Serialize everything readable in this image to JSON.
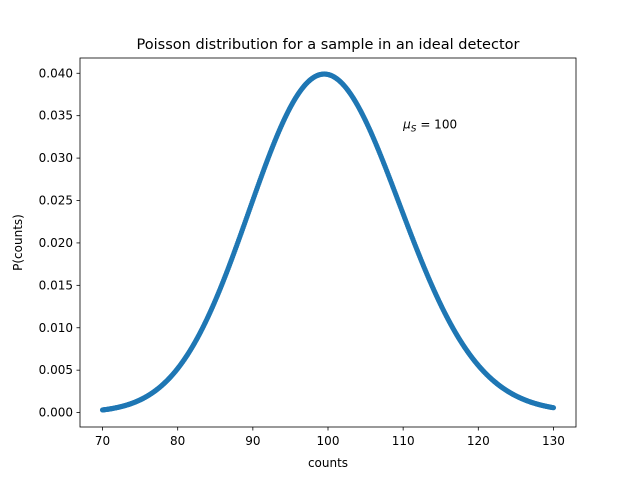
{
  "chart_data": {
    "type": "scatter",
    "title": "Poisson distribution for a sample in an ideal detector",
    "xlabel": "counts",
    "ylabel": "P(counts)",
    "xlim": [
      67,
      133
    ],
    "ylim": [
      -0.0017,
      0.0418
    ],
    "x_ticks": [
      70,
      80,
      90,
      100,
      110,
      120,
      130
    ],
    "x_tick_labels": [
      "70",
      "80",
      "90",
      "100",
      "110",
      "120",
      "130"
    ],
    "y_ticks": [
      0.0,
      0.005,
      0.01,
      0.015,
      0.02,
      0.025,
      0.03,
      0.035,
      0.04
    ],
    "y_tick_labels": [
      "0.000",
      "0.005",
      "0.010",
      "0.015",
      "0.020",
      "0.025",
      "0.030",
      "0.035",
      "0.040"
    ],
    "grid": false,
    "series": [
      {
        "color": "#1f77b4",
        "distribution": "poisson",
        "mean": 100,
        "x_start": 70,
        "x_end": 130,
        "x_step": 0.1
      }
    ],
    "annotation": {
      "symbol": "μ",
      "subscript": "S",
      "text": " = 100",
      "x": 110,
      "y": 0.0335
    }
  }
}
